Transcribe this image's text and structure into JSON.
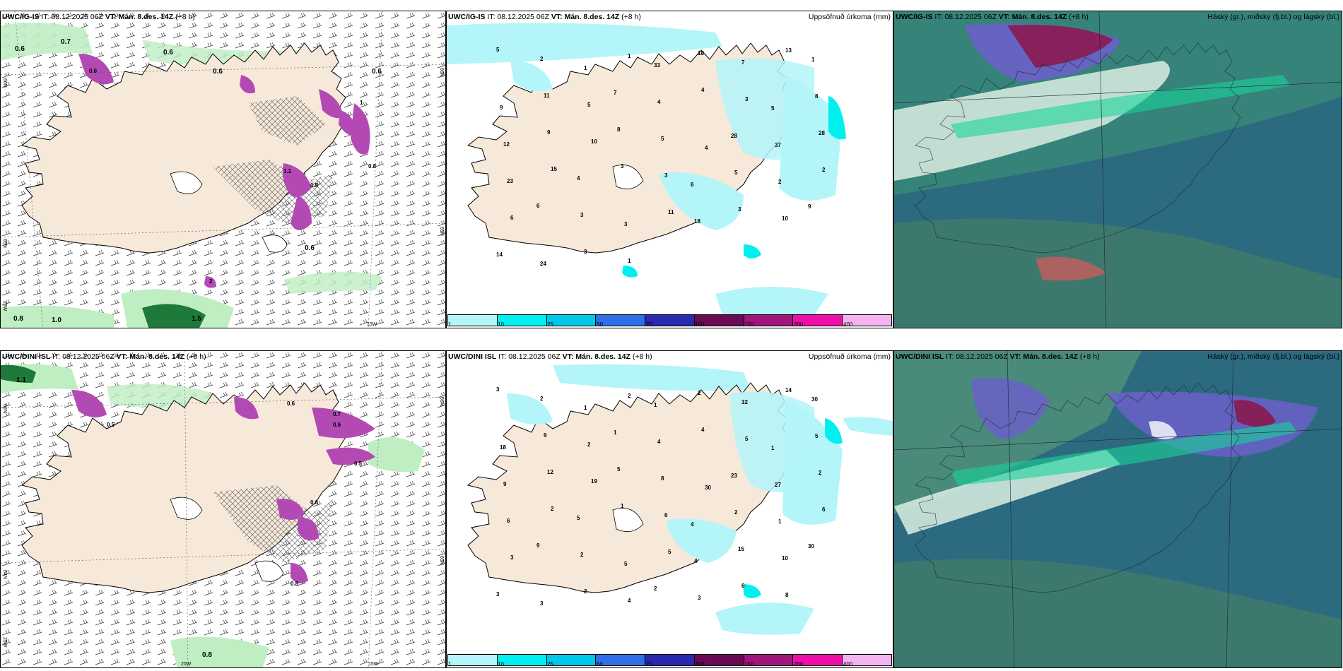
{
  "colors": {
    "land": "#f6e9d9",
    "green1": "#bfeec3",
    "green2": "#7ed98a",
    "green3": "#1e7a3a",
    "purple": "#b34ab4",
    "cyan1": "#b3f5f8",
    "cyan2": "#00f0f0",
    "cyan3": "#00c8e8",
    "cloud_bg": "#2c6a80"
  },
  "panels": [
    {
      "model": "UWC/IG-IS",
      "it_label": "IT:",
      "it": "08.12.2025 06Z",
      "vt_label": "VT:",
      "vt": "Mán. 8.des. 14Z",
      "lead": "(+8 h)",
      "right": ""
    },
    {
      "model": "UWC/IG-IS",
      "it_label": "IT:",
      "it": "08.12.2025 06Z",
      "vt_label": "VT:",
      "vt": "Mán. 8.des. 14Z",
      "lead": "(+8 h)",
      "right": "Uppsöfnuð úrkoma (mm)"
    },
    {
      "model": "UWC/IG-IS",
      "it_label": "IT:",
      "it": "08.12.2025 06Z",
      "vt_label": "VT:",
      "vt": "Mán. 8.des. 14Z",
      "lead": "(+8 h)",
      "right": "Háský (gr.), miðský (fj.bl.) og lágský (bl.)"
    },
    {
      "model": "UWC/DINI ISL",
      "it_label": "IT:",
      "it": "08.12.2025 06Z",
      "vt_label": "VT:",
      "vt": "Mán. 8.des. 14Z",
      "lead": "(+8 h)",
      "right": ""
    },
    {
      "model": "UWC/DINI ISL",
      "it_label": "IT:",
      "it": "08.12.2025 06Z",
      "vt_label": "VT:",
      "vt": "Mán. 8.des. 14Z",
      "lead": "(+8 h)",
      "right": "Uppsöfnuð úrkoma (mm)"
    },
    {
      "model": "UWC/DINI ISL",
      "it_label": "IT:",
      "it": "08.12.2025 06Z",
      "vt_label": "VT:",
      "vt": "Mán. 8.des. 14Z",
      "lead": "(+8 h)",
      "right": "Háský (gr.), miðský (fj.bl.) og lágský (bl.)"
    }
  ],
  "colorbar": {
    "colors": [
      "#b3f5f8",
      "#00f0f0",
      "#00c8e8",
      "#2f6fe8",
      "#2a2aae",
      "#6a0a55",
      "#a0167d",
      "#ee0fa8",
      "#f4b2f0"
    ],
    "ticks": [
      "1",
      "10",
      "25",
      "50",
      "75",
      "100",
      "150",
      "200",
      "400"
    ]
  },
  "axis_labels": {
    "lat66": "66N",
    "lat64": "64N",
    "lat65": "65N",
    "lon25": "25W",
    "lon20": "20W",
    "lon15": "15W",
    "lat66b": "66N",
    "lat65b": "65N"
  },
  "snow_labels_top": [
    "0.6",
    "0.6",
    "0.7",
    "0.6",
    "0.6",
    "0.6",
    "0.8",
    "1.0",
    "1.5",
    "0.6",
    "1",
    "1.1",
    "0.5",
    "0.8",
    "2"
  ],
  "snow_labels_bottom": [
    "1.1",
    "0.8",
    "0.8",
    "0.6",
    "0.5",
    "0.6",
    "0.7",
    "0.5",
    "0.6"
  ],
  "precip_labels_top": [
    "5",
    "2",
    "1",
    "1",
    "33",
    "18",
    "7",
    "13",
    "1",
    "9",
    "11",
    "5",
    "7",
    "4",
    "4",
    "3",
    "5",
    "8",
    "12",
    "9",
    "10",
    "8",
    "5",
    "4",
    "28",
    "37",
    "28",
    "23",
    "15",
    "4",
    "3",
    "3",
    "6",
    "5",
    "2",
    "2",
    "6",
    "6",
    "3",
    "3",
    "11",
    "18",
    "3",
    "10",
    "9",
    "14",
    "24",
    "3",
    "1"
  ],
  "precip_labels_bottom": [
    "3",
    "2",
    "1",
    "2",
    "1",
    "2",
    "32",
    "14",
    "30",
    "18",
    "9",
    "2",
    "1",
    "4",
    "4",
    "5",
    "1",
    "5",
    "9",
    "12",
    "19",
    "5",
    "8",
    "30",
    "23",
    "27",
    "2",
    "6",
    "2",
    "5",
    "1",
    "6",
    "4",
    "2",
    "1",
    "6",
    "3",
    "9",
    "2",
    "5",
    "5",
    "4",
    "15",
    "10",
    "30",
    "3",
    "3",
    "2",
    "4",
    "2",
    "3",
    "6",
    "8"
  ]
}
